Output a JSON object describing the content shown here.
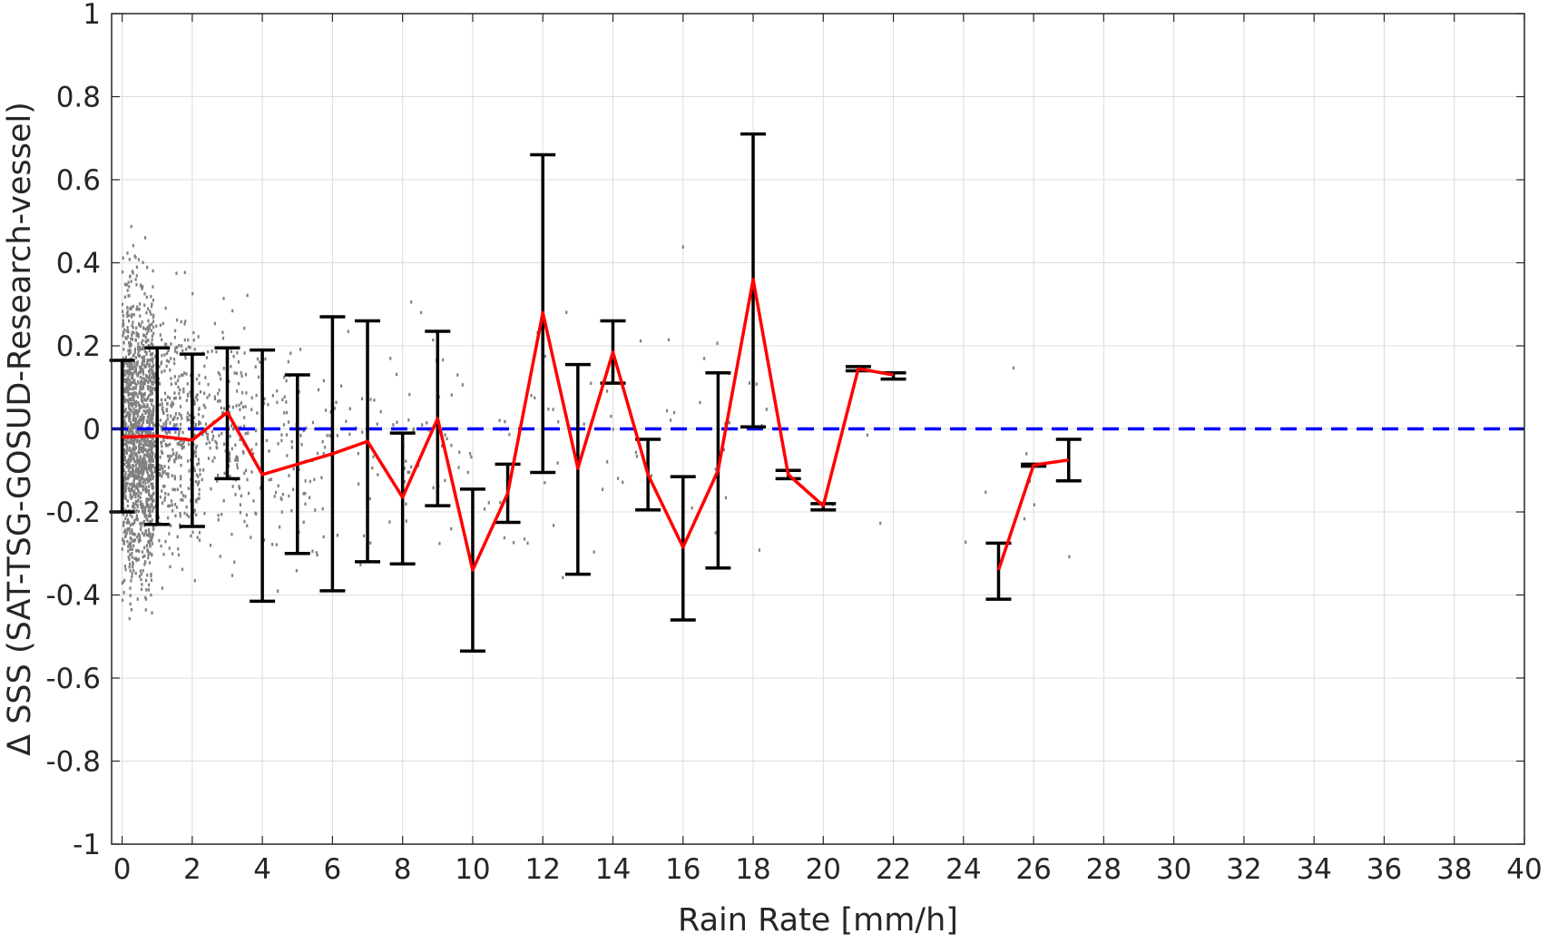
{
  "chart_data": {
    "type": "scatter",
    "xlabel": "Rain Rate [mm/h]",
    "ylabel": "Δ SSS (SAT-TSG-GOSUD-Research-vessel)",
    "xlim": [
      -0.3,
      40
    ],
    "ylim": [
      -1,
      1
    ],
    "xticks": [
      0,
      2,
      4,
      6,
      8,
      10,
      12,
      14,
      16,
      18,
      20,
      22,
      24,
      26,
      28,
      30,
      32,
      34,
      36,
      38,
      40
    ],
    "yticks": [
      -1,
      -0.8,
      -0.6,
      -0.4,
      -0.2,
      0,
      0.2,
      0.4,
      0.6,
      0.8,
      1
    ],
    "ytick_labels": [
      "-1",
      "-0.8",
      "-0.6",
      "-0.4",
      "-0.2",
      "0",
      "0.2",
      "0.4",
      "0.6",
      "0.8",
      "1"
    ],
    "grid": true,
    "reference_line": {
      "y": 0,
      "style": "dashed",
      "color": "#0000ff"
    },
    "series": [
      {
        "type": "errorbar",
        "color": "#000000",
        "x": [
          0,
          1,
          2,
          3,
          4,
          5,
          6,
          7,
          8,
          9,
          10,
          11,
          12,
          13,
          14,
          15,
          16,
          17,
          18,
          19,
          20,
          21,
          22,
          25,
          26,
          27
        ],
        "lower": [
          -0.2,
          -0.23,
          -0.235,
          -0.12,
          -0.415,
          -0.3,
          -0.39,
          -0.32,
          -0.325,
          -0.185,
          -0.535,
          -0.225,
          -0.105,
          -0.35,
          0.11,
          -0.195,
          -0.46,
          -0.335,
          0.005,
          -0.12,
          -0.195,
          0.14,
          0.12,
          -0.41,
          -0.09,
          -0.125
        ],
        "upper": [
          0.165,
          0.195,
          0.18,
          0.195,
          0.19,
          0.13,
          0.27,
          0.26,
          -0.01,
          0.235,
          -0.145,
          -0.085,
          0.66,
          0.155,
          0.26,
          -0.025,
          -0.115,
          0.135,
          0.71,
          -0.1,
          -0.18,
          0.15,
          0.135,
          -0.275,
          -0.085,
          -0.025
        ]
      },
      {
        "type": "line",
        "color": "#ff0000",
        "segments": [
          {
            "x": [
              0,
              1,
              2,
              3,
              4,
              5,
              6,
              7,
              8,
              9,
              10,
              11,
              12,
              13,
              14,
              15,
              16,
              17,
              18,
              19,
              20,
              21,
              22
            ],
            "y": [
              -0.02,
              -0.017,
              -0.027,
              0.04,
              -0.11,
              -0.085,
              -0.06,
              -0.03,
              -0.165,
              0.025,
              -0.34,
              -0.155,
              0.28,
              -0.095,
              0.185,
              -0.11,
              -0.285,
              -0.1,
              0.36,
              -0.11,
              -0.185,
              0.145,
              0.13
            ]
          },
          {
            "x": [
              25,
              26,
              27
            ],
            "y": [
              -0.34,
              -0.087,
              -0.075
            ]
          }
        ]
      }
    ],
    "scatter_background": {
      "color": "#808080",
      "note": "dense grey cloud of individual match-up points concentrated at low rain rates"
    }
  }
}
